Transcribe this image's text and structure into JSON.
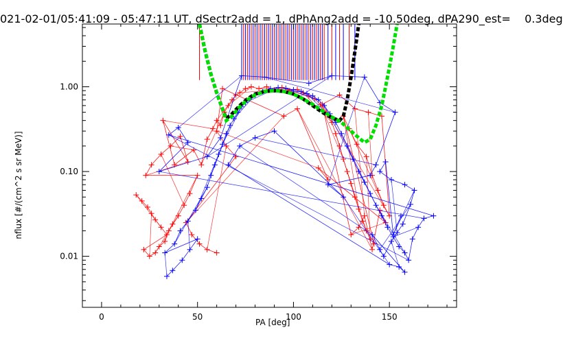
{
  "title": "021-02-01/05:41:09 - 05:47:11 UT, dSectr2add = 1, dPhAng2add = -10.50deg, dPA290_est=    0.3deg",
  "chart_data": {
    "type": "scatter",
    "xlabel": "PA [deg]",
    "ylabel": "nflux [#/(cm^2 s sr MeV)]",
    "xlim": [
      -10,
      185
    ],
    "ylim": [
      0.0025,
      5.5
    ],
    "yscale": "log",
    "x_ticks": [
      0,
      50,
      100,
      150
    ],
    "x_tick_labels": [
      "0",
      "50",
      "100",
      "150"
    ],
    "y_ticks": [
      0.01,
      0.1,
      1.0
    ],
    "y_tick_labels": [
      "0.01",
      "0.10",
      "1.00"
    ],
    "grid": false,
    "series": [
      {
        "color": "#ff0000",
        "marker": "+",
        "style": "thin lines connecting points",
        "points": [
          [
            18,
            0.053
          ],
          [
            21,
            0.045
          ],
          [
            24,
            0.038
          ],
          [
            26,
            0.032
          ],
          [
            28,
            0.027
          ],
          [
            31,
            0.022
          ],
          [
            34,
            0.018
          ],
          [
            22,
            0.012
          ],
          [
            25,
            0.01
          ],
          [
            28,
            0.011
          ],
          [
            30,
            0.013
          ],
          [
            33,
            0.015
          ],
          [
            35,
            0.02
          ],
          [
            37,
            0.024
          ],
          [
            40,
            0.03
          ],
          [
            43,
            0.04
          ],
          [
            46,
            0.055
          ],
          [
            50,
            0.09
          ],
          [
            23,
            0.09
          ],
          [
            26,
            0.12
          ],
          [
            31,
            0.16
          ],
          [
            36,
            0.2
          ],
          [
            41,
            0.26
          ],
          [
            45,
            0.13
          ],
          [
            32,
            0.4
          ],
          [
            38,
            0.12
          ],
          [
            48,
            0.18
          ],
          [
            52,
            0.12
          ],
          [
            55,
            0.24
          ],
          [
            58,
            0.32
          ],
          [
            60,
            0.4
          ],
          [
            62,
            0.35
          ],
          [
            64,
            0.5
          ],
          [
            66,
            0.6
          ],
          [
            68,
            0.7
          ],
          [
            70,
            0.8
          ],
          [
            72,
            0.85
          ],
          [
            75,
            0.95
          ],
          [
            78,
            1.0
          ],
          [
            82,
            0.95
          ],
          [
            86,
            1.0
          ],
          [
            90,
            0.92
          ],
          [
            94,
            0.98
          ],
          [
            98,
            0.9
          ],
          [
            102,
            0.93
          ],
          [
            105,
            0.85
          ],
          [
            108,
            0.78
          ],
          [
            111,
            0.72
          ],
          [
            114,
            0.62
          ],
          [
            117,
            0.5
          ],
          [
            120,
            0.38
          ],
          [
            122,
            0.28
          ],
          [
            124,
            0.2
          ],
          [
            126,
            0.14
          ],
          [
            128,
            0.1
          ],
          [
            130,
            0.072
          ],
          [
            132,
            0.05
          ],
          [
            134,
            0.036
          ],
          [
            136,
            0.026
          ],
          [
            138,
            0.02
          ],
          [
            140,
            0.016
          ],
          [
            142,
            0.014
          ],
          [
            126,
            0.45
          ],
          [
            129,
            0.32
          ],
          [
            133,
            0.21
          ],
          [
            138,
            0.15
          ],
          [
            141,
            0.09
          ],
          [
            144,
            0.06
          ],
          [
            147,
            0.04
          ],
          [
            150,
            0.03
          ],
          [
            146,
            0.45
          ],
          [
            139,
            0.5
          ],
          [
            132,
            0.55
          ],
          [
            124,
            0.8
          ],
          [
            115,
            0.62
          ],
          [
            130,
            0.018
          ],
          [
            134,
            0.022
          ],
          [
            137,
            0.03
          ],
          [
            141,
            0.012
          ],
          [
            145,
            0.035
          ],
          [
            148,
            0.025
          ],
          [
            113,
            0.11
          ],
          [
            118,
            0.08
          ],
          [
            102,
            0.55
          ],
          [
            95,
            0.45
          ],
          [
            63,
            0.95
          ],
          [
            60,
            0.3
          ],
          [
            65,
            0.2
          ],
          [
            70,
            0.15
          ],
          [
            44,
            0.025
          ],
          [
            47,
            0.018
          ],
          [
            51,
            0.014
          ],
          [
            55,
            0.012
          ],
          [
            60,
            0.011
          ]
        ]
      },
      {
        "color": "#0000ff",
        "marker": "+",
        "style": "thin lines connecting points",
        "points": [
          [
            34,
            0.0058
          ],
          [
            37,
            0.0068
          ],
          [
            42,
            0.009
          ],
          [
            46,
            0.012
          ],
          [
            50,
            0.016
          ],
          [
            33,
            0.011
          ],
          [
            38,
            0.014
          ],
          [
            41,
            0.02
          ],
          [
            45,
            0.026
          ],
          [
            49,
            0.035
          ],
          [
            52,
            0.048
          ],
          [
            55,
            0.065
          ],
          [
            57,
            0.09
          ],
          [
            59,
            0.12
          ],
          [
            61,
            0.16
          ],
          [
            63,
            0.21
          ],
          [
            65,
            0.28
          ],
          [
            67,
            0.35
          ],
          [
            69,
            0.42
          ],
          [
            71,
            0.5
          ],
          [
            73,
            0.58
          ],
          [
            75,
            0.65
          ],
          [
            77,
            0.72
          ],
          [
            80,
            0.8
          ],
          [
            84,
            0.88
          ],
          [
            88,
            0.95
          ],
          [
            92,
            0.98
          ],
          [
            96,
            0.96
          ],
          [
            100,
            0.92
          ],
          [
            104,
            0.88
          ],
          [
            107,
            0.83
          ],
          [
            110,
            0.78
          ],
          [
            113,
            0.7
          ],
          [
            116,
            0.6
          ],
          [
            119,
            0.48
          ],
          [
            122,
            0.38
          ],
          [
            125,
            0.28
          ],
          [
            128,
            0.2
          ],
          [
            131,
            0.14
          ],
          [
            134,
            0.1
          ],
          [
            137,
            0.075
          ],
          [
            140,
            0.055
          ],
          [
            143,
            0.04
          ],
          [
            146,
            0.03
          ],
          [
            149,
            0.022
          ],
          [
            152,
            0.017
          ],
          [
            155,
            0.013
          ],
          [
            158,
            0.011
          ],
          [
            160,
            0.009
          ],
          [
            162,
            0.016
          ],
          [
            165,
            0.022
          ],
          [
            168,
            0.028
          ],
          [
            173,
            0.03
          ],
          [
            35,
            0.27
          ],
          [
            40,
            0.33
          ],
          [
            45,
            0.22
          ],
          [
            30,
            0.1
          ],
          [
            55,
            0.15
          ],
          [
            62,
            0.25
          ],
          [
            73,
            1.35
          ],
          [
            85,
            1.3
          ],
          [
            108,
            1.1
          ],
          [
            120,
            1.35
          ],
          [
            137,
            1.3
          ],
          [
            145,
            0.65
          ],
          [
            153,
            0.5
          ],
          [
            143,
            0.12
          ],
          [
            140,
            0.09
          ],
          [
            118,
            0.07
          ],
          [
            126,
            0.05
          ],
          [
            90,
            0.3
          ],
          [
            80,
            0.25
          ],
          [
            72,
            0.2
          ],
          [
            66,
            0.12
          ],
          [
            150,
            0.008
          ],
          [
            155,
            0.0075
          ],
          [
            158,
            0.0065
          ],
          [
            141,
            0.018
          ],
          [
            145,
            0.012
          ],
          [
            147,
            0.01
          ],
          [
            151,
            0.015
          ],
          [
            154,
            0.019
          ],
          [
            157,
            0.024
          ],
          [
            161,
            0.041
          ],
          [
            163,
            0.06
          ],
          [
            158,
            0.07
          ],
          [
            151,
            0.08
          ],
          [
            145,
            0.1
          ],
          [
            148,
            0.13
          ],
          [
            152,
            0.018
          ],
          [
            156,
            0.03
          ]
        ]
      },
      {
        "name": "",
        "color": "#000000",
        "style": "thick dashed",
        "points": [
          [
            51,
            5.5
          ],
          [
            54,
            2.6
          ],
          [
            57,
            1.4
          ],
          [
            60,
            0.85
          ],
          [
            63,
            0.55
          ],
          [
            65,
            0.42
          ],
          [
            68,
            0.48
          ],
          [
            72,
            0.6
          ],
          [
            76,
            0.72
          ],
          [
            80,
            0.82
          ],
          [
            85,
            0.88
          ],
          [
            90,
            0.9
          ],
          [
            95,
            0.88
          ],
          [
            100,
            0.82
          ],
          [
            105,
            0.72
          ],
          [
            110,
            0.6
          ],
          [
            115,
            0.5
          ],
          [
            120,
            0.43
          ],
          [
            124,
            0.4
          ],
          [
            126,
            0.45
          ],
          [
            128,
            0.7
          ],
          [
            130,
            1.3
          ],
          [
            132,
            2.6
          ],
          [
            134,
            5.5
          ]
        ]
      },
      {
        "name": "",
        "color": "#00e000",
        "style": "thick dashed",
        "points": [
          [
            51,
            5.5
          ],
          [
            54,
            2.6
          ],
          [
            57,
            1.4
          ],
          [
            60,
            0.85
          ],
          [
            63,
            0.55
          ],
          [
            65,
            0.4
          ],
          [
            68,
            0.45
          ],
          [
            72,
            0.58
          ],
          [
            76,
            0.7
          ],
          [
            80,
            0.8
          ],
          [
            85,
            0.88
          ],
          [
            90,
            0.9
          ],
          [
            95,
            0.88
          ],
          [
            100,
            0.82
          ],
          [
            105,
            0.72
          ],
          [
            110,
            0.62
          ],
          [
            115,
            0.52
          ],
          [
            120,
            0.44
          ],
          [
            125,
            0.38
          ],
          [
            130,
            0.3
          ],
          [
            134,
            0.25
          ],
          [
            137,
            0.22
          ],
          [
            140,
            0.24
          ],
          [
            143,
            0.35
          ],
          [
            146,
            0.6
          ],
          [
            148,
            1.0
          ],
          [
            150,
            1.7
          ],
          [
            152,
            3.0
          ],
          [
            154,
            5.5
          ]
        ]
      }
    ],
    "vertical_lines": {
      "colors": [
        "#ff0000",
        "#0000ff"
      ],
      "y_from": 1.2,
      "y_to": 5.5,
      "x_positions": [
        51,
        73,
        74,
        75,
        76,
        77,
        78,
        79,
        80,
        81,
        82,
        83,
        84,
        85,
        86,
        87,
        88,
        89,
        90,
        91,
        92,
        93,
        94,
        95,
        96,
        97,
        98,
        99,
        100,
        101,
        102,
        103,
        104,
        105,
        106,
        107,
        108,
        109,
        110,
        111,
        112,
        113,
        114,
        115,
        116,
        118,
        120,
        122,
        124,
        126,
        129,
        132
      ]
    }
  }
}
